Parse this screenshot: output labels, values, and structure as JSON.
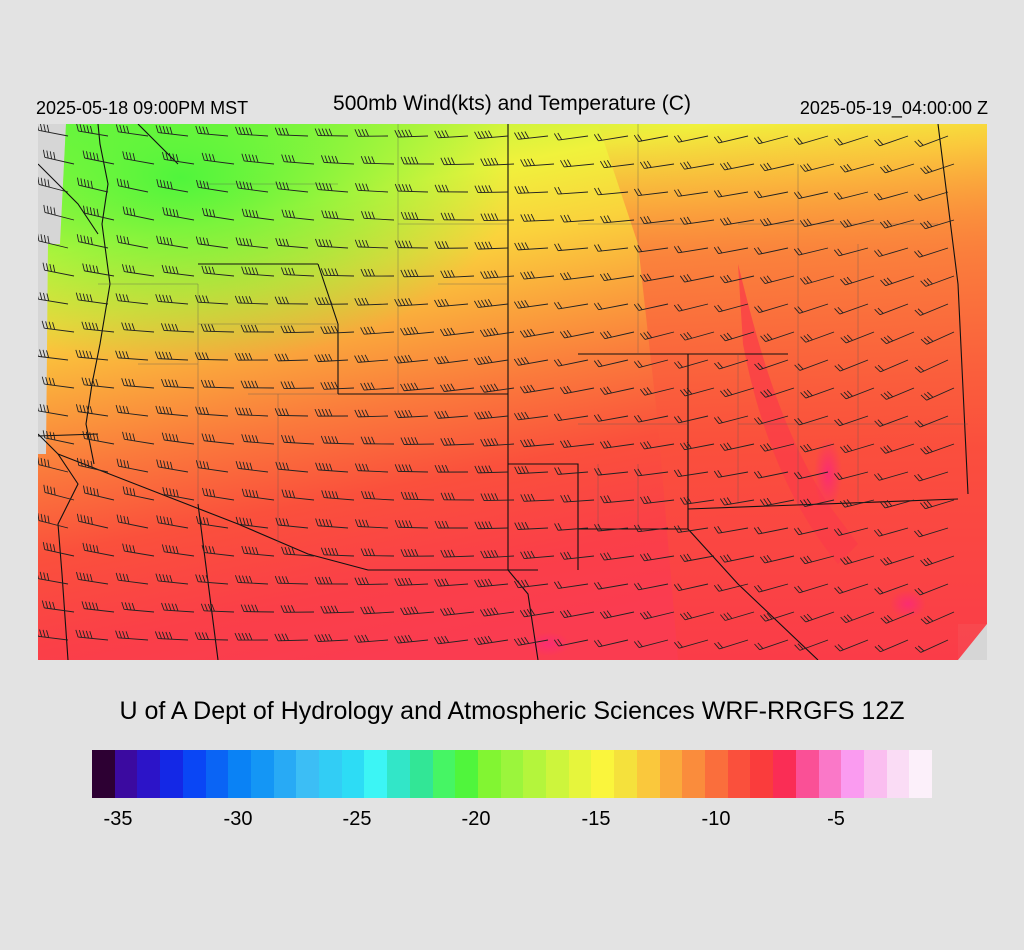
{
  "header": {
    "valid_local": "2025-05-18 09:00PM MST",
    "title": "500mb Wind(kts) and Temperature (C)",
    "valid_utc": "2025-05-19_04:00:00 Z"
  },
  "credit": "U of A Dept of Hydrology and Atmospheric Sciences WRF-RRGFS 12Z",
  "colorbar": {
    "colors": [
      "#2d0033",
      "#3b0aa0",
      "#2c14c8",
      "#1428e6",
      "#0a46f5",
      "#0a64f5",
      "#0a82f5",
      "#1496f5",
      "#28aaf5",
      "#3cbef5",
      "#32cdf5",
      "#2ddcf5",
      "#3cf5f5",
      "#32e6c8",
      "#32e696",
      "#46f564",
      "#50f53c",
      "#82f532",
      "#9bf53c",
      "#b4f53c",
      "#cdf53c",
      "#e6f53c",
      "#faf53c",
      "#f5e13c",
      "#fac83c",
      "#faaa3c",
      "#fa8c3c",
      "#fa6e3c",
      "#fa503c",
      "#fa3c3c",
      "#fa2d55",
      "#fa5096",
      "#fa78c8",
      "#fa9bf0",
      "#fabef0",
      "#fadcf5",
      "#fcf0fa"
    ],
    "tick_labels": [
      "-35",
      "-30",
      "-25",
      "-20",
      "-15",
      "-10",
      "-5"
    ]
  },
  "map": {
    "color_bands": [
      {
        "color": "#7df53f"
      },
      {
        "color": "#a4f53c"
      },
      {
        "color": "#d2f53c"
      },
      {
        "color": "#f0f23c"
      },
      {
        "color": "#fad23c"
      },
      {
        "color": "#fab43c"
      },
      {
        "color": "#fa963c"
      },
      {
        "color": "#fa783c"
      },
      {
        "color": "#fa5a3c"
      },
      {
        "color": "#fa3f42"
      }
    ],
    "barb_color": "#222222",
    "border_color": "#111111"
  }
}
